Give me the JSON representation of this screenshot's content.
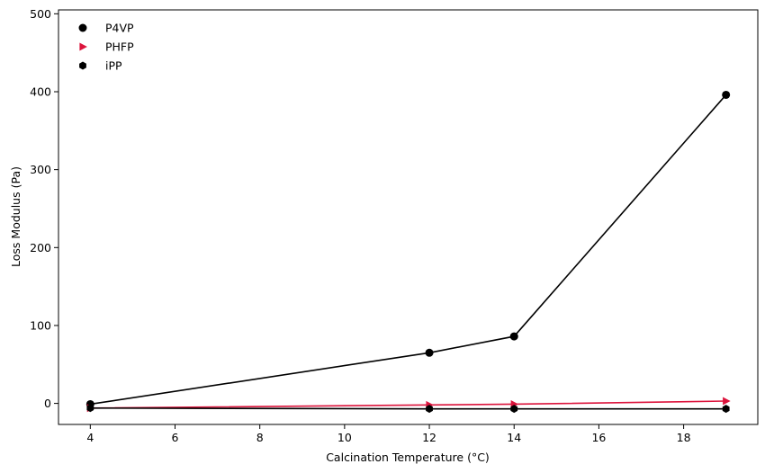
{
  "chart_data": {
    "type": "line",
    "title": "",
    "xlabel": "Calcination Temperature (°C)",
    "ylabel": "Loss Modulus (Pa)",
    "xlim": [
      3.25,
      19.75
    ],
    "ylim": [
      -27,
      505
    ],
    "xticks": [
      4,
      6,
      8,
      10,
      12,
      14,
      16,
      18
    ],
    "yticks": [
      0,
      100,
      200,
      300,
      400,
      500
    ],
    "grid": false,
    "legend_position": "top-left",
    "series": [
      {
        "name": "P4VP",
        "marker": "circle",
        "color": "#000000",
        "x": [
          4,
          12,
          14,
          19
        ],
        "y": [
          -1,
          65,
          86,
          396
        ]
      },
      {
        "name": "PHFP",
        "marker": "triangle-right",
        "color": "#dc143c",
        "x": [
          4,
          12,
          14,
          19
        ],
        "y": [
          -6,
          -2,
          -1,
          3
        ]
      },
      {
        "name": "iPP",
        "marker": "hexagon",
        "color": "#000000",
        "x": [
          4,
          12,
          14,
          19
        ],
        "y": [
          -6,
          -7,
          -7,
          -7
        ]
      }
    ]
  }
}
